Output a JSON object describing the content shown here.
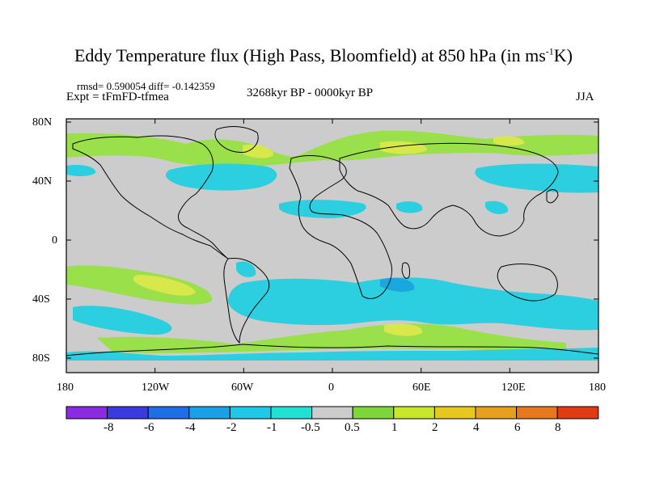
{
  "title": {
    "main": "Eddy Temperature flux (High Pass, Bloomfield) at 850 hPa (in ms",
    "sup": "-1",
    "end": "K)"
  },
  "stats": "rmsd= 0.590054 diff= -0.142359",
  "expt": "Expt = tFmFD-tfmea",
  "period": "3268kyr BP - 0000kyr BP",
  "season": "JJA",
  "y_ticks": [
    "80N",
    "40N",
    "0",
    "40S",
    "80S"
  ],
  "x_ticks": [
    "180",
    "120W",
    "60W",
    "0",
    "60E",
    "120E",
    "180"
  ],
  "colorbar": {
    "labels": [
      "-8",
      "-6",
      "-4",
      "-2",
      "-1",
      "-0.5",
      "0.5",
      "1",
      "2",
      "4",
      "6",
      "8"
    ],
    "colors": [
      "#8a2be2",
      "#3a3adf",
      "#1e6fe6",
      "#1aa0e6",
      "#1ec8e6",
      "#22e0d6",
      "#cccccc",
      "#7fd63a",
      "#c8e62a",
      "#e6c81e",
      "#e6a01e",
      "#e6781e",
      "#e03c14"
    ]
  },
  "anomaly_colors": {
    "pos1": "#9ae04a",
    "pos2": "#d8e84a",
    "neg1": "#2ccfe0",
    "neg2": "#1aa6df",
    "background": "#cccccc"
  }
}
